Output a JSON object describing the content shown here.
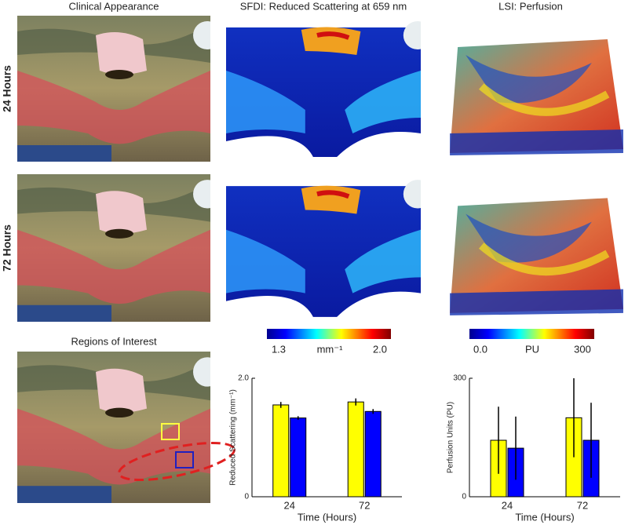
{
  "panels": {
    "col_titles": [
      "Clinical Appearance",
      "SFDI: Reduced Scattering at 659 nm",
      "LSI: Perfusion"
    ],
    "row_labels": [
      "24 Hours",
      "72 Hours"
    ],
    "roi_title": "Regions of Interest"
  },
  "colorbars": [
    {
      "min": 1.3,
      "max": {
        "value": 2,
        "label": "2.0"
      },
      "unit": "mm⁻¹"
    },
    {
      "min": {
        "value": 0,
        "label": "0.0"
      },
      "max": 300,
      "unit": "PU"
    }
  ],
  "chart_data": [
    {
      "type": "bar",
      "ylabel": "Reduced Scattering (mm⁻¹)",
      "xlabel": "Time (Hours)",
      "categories": [
        "24",
        "72"
      ],
      "series": [
        {
          "color": "#ffff00",
          "values": [
            1.55,
            1.6
          ],
          "errors": [
            0.05,
            0.06
          ]
        },
        {
          "color": "#0000ff",
          "values": [
            1.33,
            1.44
          ],
          "errors": [
            0.03,
            0.04
          ]
        }
      ],
      "ylim": [
        0,
        2
      ],
      "yticks": [
        0,
        {
          "value": 2,
          "label": "2.0"
        }
      ]
    },
    {
      "type": "bar",
      "ylabel": "Perfusion Units (PU)",
      "xlabel": "Time (Hours)",
      "categories": [
        "24",
        "72"
      ],
      "series": [
        {
          "color": "#ffff00",
          "values": [
            143,
            200
          ],
          "errors": [
            85,
            100
          ]
        },
        {
          "color": "#0000ff",
          "values": [
            123,
            143
          ],
          "errors": [
            80,
            95
          ]
        }
      ],
      "ylim": [
        0,
        300
      ],
      "yticks": [
        0,
        300
      ]
    }
  ]
}
